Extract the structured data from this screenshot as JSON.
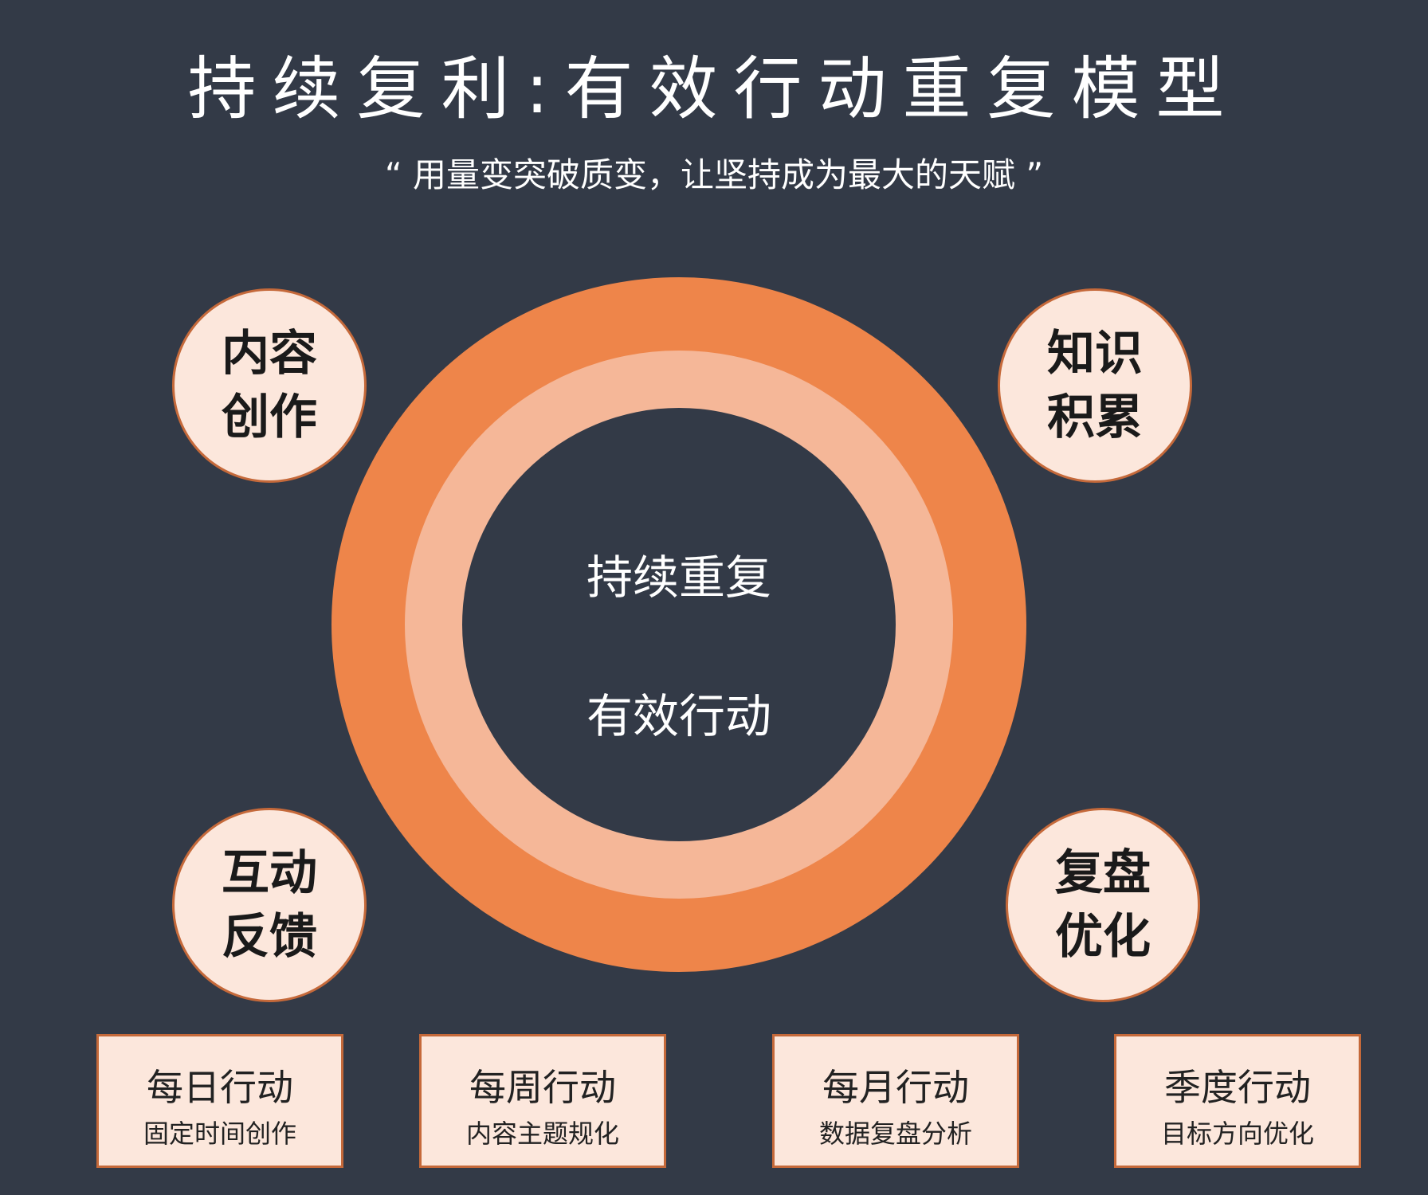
{
  "header": {
    "title": "持续复利:有效行动重复模型",
    "subtitle": "“ 用量变突破质变，让坚持成为最大的天赋 ”"
  },
  "center": {
    "line1": "持续重复",
    "line2": "有效行动"
  },
  "nodes": [
    {
      "line1": "内容",
      "line2": "创作"
    },
    {
      "line1": "知识",
      "line2": "积累"
    },
    {
      "line1": "互动",
      "line2": "反馈"
    },
    {
      "line1": "复盘",
      "line2": "优化"
    }
  ],
  "cards": [
    {
      "title": "每日行动",
      "desc": "固定时间创作"
    },
    {
      "title": "每周行动",
      "desc": "内容主题规化"
    },
    {
      "title": "每月行动",
      "desc": "数据复盘分析"
    },
    {
      "title": "季度行动",
      "desc": "目标方向优化"
    }
  ],
  "colors": {
    "background": "#333a47",
    "outer_ring": "#ee854a",
    "inner_ring": "#f5b798",
    "node_fill": "#fce7dc",
    "node_border": "#c5693a"
  }
}
